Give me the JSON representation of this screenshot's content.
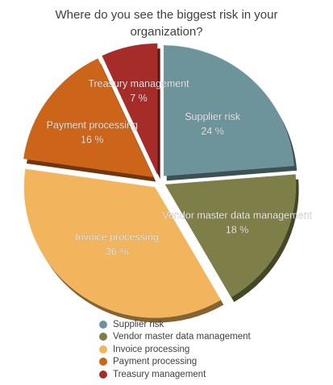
{
  "chart_data": {
    "type": "pie",
    "title_lines": [
      "Where do you see the biggest risk in your",
      "organization?"
    ],
    "slices": [
      {
        "label": "Supplier risk",
        "value": 24,
        "value_label": "24 %",
        "color": "#6E949B"
      },
      {
        "label": "Vendor master data management",
        "value": 18,
        "value_label": "18 %",
        "color": "#7E7E48"
      },
      {
        "label": "Invoice processing",
        "value": 36,
        "value_label": "36 %",
        "color": "#F2B45C"
      },
      {
        "label": "Payment processing",
        "value": 16,
        "value_label": "16 %",
        "color": "#CC6419"
      },
      {
        "label": "Treasury management",
        "value": 7,
        "value_label": "7 %",
        "color": "#A62C2A"
      }
    ],
    "legend_position": "bottom"
  }
}
